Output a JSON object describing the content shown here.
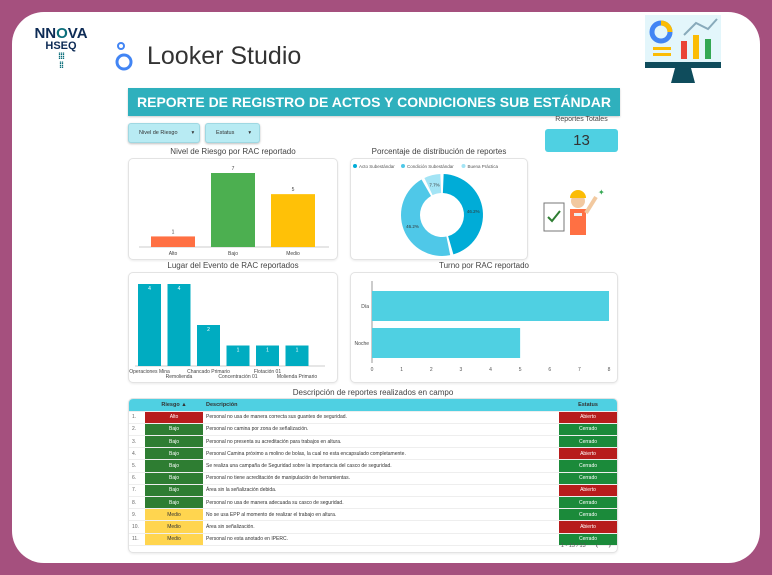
{
  "brand": {
    "logo_text": "NNOVA HSEQ",
    "app_name": "Looker Studio"
  },
  "title": "REPORTE DE REGISTRO DE ACTOS Y CONDICIONES SUB ESTÁNDAR",
  "filters": [
    {
      "label": "Nivel de Riesgo"
    },
    {
      "label": "Estatus"
    }
  ],
  "kpi": {
    "label": "Reportes Totales",
    "value": "13"
  },
  "colors": {
    "accent": "#2fb0bd",
    "alto": "#b71c1c",
    "bajo": "#2e7d32",
    "medio": "#ffd54f",
    "abierto": "#b71c1c",
    "cerrado": "#1b8a3a"
  },
  "chart_data": [
    {
      "type": "bar",
      "title": "Nivel de Riesgo por RAC reportado",
      "categories": [
        "Alto",
        "Bajo",
        "Medio"
      ],
      "values": [
        1,
        7,
        5
      ],
      "colors": [
        "#ff7043",
        "#4caf50",
        "#ffc107"
      ],
      "ylim": [
        0,
        7
      ]
    },
    {
      "type": "pie",
      "title": "Porcentaje de distribución de reportes",
      "categories": [
        "Acto Subestándar",
        "Condición Subestándar",
        "Buena Práctica"
      ],
      "values": [
        46.2,
        46.2,
        7.7
      ],
      "labels": [
        "46.2%",
        "46.2%",
        "7.7%"
      ],
      "colors": [
        "#00acd7",
        "#4fc8e8",
        "#a3e4f5"
      ],
      "legend": "top"
    },
    {
      "type": "bar",
      "title": "Lugar del Evento de RAC reportados",
      "categories": [
        "Operaciones Mina",
        "Remolienda",
        "Chancado Primario",
        "Concentración 01",
        "Flotación 01",
        "Molienda Primario"
      ],
      "values": [
        4,
        4,
        2,
        1,
        1,
        1
      ],
      "ylim": [
        0,
        4
      ]
    },
    {
      "type": "bar",
      "orientation": "horizontal",
      "title": "Turno por RAC reportado",
      "categories": [
        "Día",
        "Noche"
      ],
      "values": [
        8,
        5
      ],
      "xlim": [
        0,
        8
      ],
      "xticks": [
        "0",
        "1",
        "2",
        "3",
        "4",
        "5",
        "6",
        "7",
        "8"
      ]
    }
  ],
  "table": {
    "title": "Descripción de reportes realizados en campo",
    "headers": {
      "riesgo": "Riesgo ▲",
      "descripcion": "Descripción",
      "estatus": "Estatus"
    },
    "rows": [
      {
        "n": "1.",
        "riesgo": "Alto",
        "descripcion": "Personal no usa de manera correcta sus guantes de seguridad.",
        "estatus": "Abierto"
      },
      {
        "n": "2.",
        "riesgo": "Bajo",
        "descripcion": "Personal no camina por zona de señalización.",
        "estatus": "Cerrado"
      },
      {
        "n": "3.",
        "riesgo": "Bajo",
        "descripcion": "Personal no presenta su acreditación para trabajos en altura.",
        "estatus": "Cerrado"
      },
      {
        "n": "4.",
        "riesgo": "Bajo",
        "descripcion": "Personal Camina próximo a molino de bolas, la cual no esta encapsulado completamente.",
        "estatus": "Abierto"
      },
      {
        "n": "5.",
        "riesgo": "Bajo",
        "descripcion": "Se realiza una campaña de Seguridad sobre la importancia del casco de seguridad.",
        "estatus": "Cerrado"
      },
      {
        "n": "6.",
        "riesgo": "Bajo",
        "descripcion": "Personal no tiene acreditación de manipulación de herramientas.",
        "estatus": "Cerrado"
      },
      {
        "n": "7.",
        "riesgo": "Bajo",
        "descripcion": "Área sin la señalización debida.",
        "estatus": "Abierto"
      },
      {
        "n": "8.",
        "riesgo": "Bajo",
        "descripcion": "Personal no usa de manera adecuada su casco de seguridad.",
        "estatus": "Cerrado"
      },
      {
        "n": "9.",
        "riesgo": "Medio",
        "descripcion": "No se usa EPP al momento de realizar el trabajo en altura.",
        "estatus": "Cerrado"
      },
      {
        "n": "10.",
        "riesgo": "Medio",
        "descripcion": "Área sin señalización.",
        "estatus": "Abierto"
      },
      {
        "n": "11.",
        "riesgo": "Medio",
        "descripcion": "Personal no esta anotado en IPERC.",
        "estatus": "Cerrado"
      }
    ],
    "pagination": "1 - 13 / 13"
  }
}
